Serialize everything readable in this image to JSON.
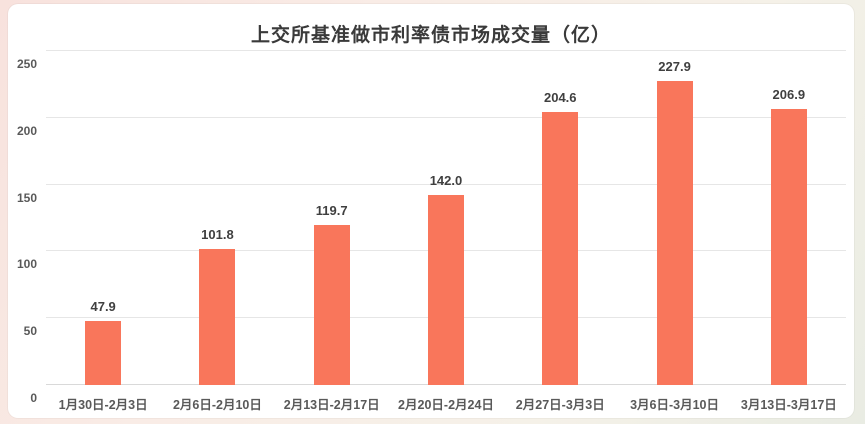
{
  "chart_data": {
    "type": "bar",
    "title": "上交所基准做市利率债市场成交量（亿）",
    "categories": [
      "1月30日-2月3日",
      "2月6日-2月10日",
      "2月13日-2月17日",
      "2月20日-2月24日",
      "2月27日-3月3日",
      "3月6日-3月10日",
      "3月13日-3月17日"
    ],
    "values": [
      47.9,
      101.8,
      119.7,
      142.0,
      204.6,
      227.9,
      206.9
    ],
    "value_labels": [
      "47.9",
      "101.8",
      "119.7",
      "142.0",
      "204.6",
      "227.9",
      "206.9"
    ],
    "xlabel": "",
    "ylabel": "",
    "ylim": [
      0,
      250
    ],
    "yticks": [
      0,
      50,
      100,
      150,
      200,
      250
    ],
    "grid": true,
    "legend": null,
    "bar_color": "#f9765b",
    "title_color": "#3a3a3a",
    "axis_label_color": "#595959",
    "value_label_color": "#3f3f3f",
    "gridline_color": "#e6e6e6",
    "card_background": "#ffffff"
  }
}
